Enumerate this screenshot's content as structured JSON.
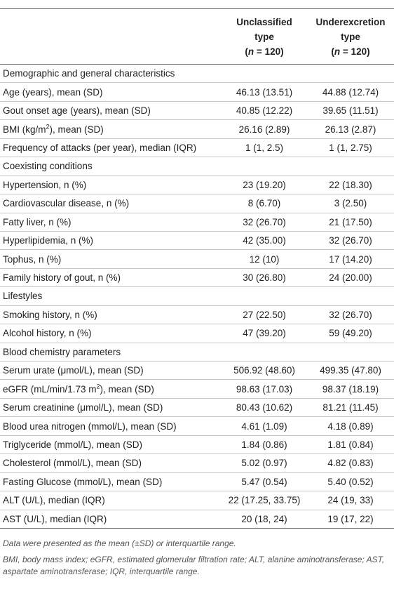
{
  "table": {
    "columns": [
      {
        "line1": "Unclassified",
        "line2": "type",
        "prefix": "(",
        "n_symbol": "n",
        "suffix": " = 120)"
      },
      {
        "line1": "Underexcretion",
        "line2": "type",
        "prefix": "(",
        "n_symbol": "n",
        "suffix": " = 120)"
      }
    ],
    "sections": [
      {
        "title": "Demographic and general characteristics",
        "rows": [
          {
            "label": "Age (years), mean (SD)",
            "values": [
              "46.13 (13.51)",
              "44.88 (12.74)"
            ]
          },
          {
            "label": "Gout onset age (years), mean (SD)",
            "values": [
              "40.85 (12.22)",
              "39.65 (11.51)"
            ]
          },
          {
            "label": "BMI (kg/m",
            "sup": "2",
            "label_after": "), mean (SD)",
            "values": [
              "26.16 (2.89)",
              "26.13 (2.87)"
            ]
          },
          {
            "label": "Frequency of attacks (per year), median (IQR)",
            "values": [
              "1 (1, 2.5)",
              "1 (1, 2.75)"
            ]
          }
        ]
      },
      {
        "title": "Coexisting conditions",
        "rows": [
          {
            "label": "Hypertension, n (%)",
            "values": [
              "23 (19.20)",
              "22 (18.30)"
            ]
          },
          {
            "label": "Cardiovascular disease, n (%)",
            "values": [
              "8 (6.70)",
              "3 (2.50)"
            ]
          },
          {
            "label": "Fatty liver, n (%)",
            "values": [
              "32 (26.70)",
              "21 (17.50)"
            ]
          },
          {
            "label": "Hyperlipidemia, n (%)",
            "values": [
              "42 (35.00)",
              "32 (26.70)"
            ]
          },
          {
            "label": "Tophus, n (%)",
            "values": [
              "12 (10)",
              "17 (14.20)"
            ]
          },
          {
            "label": "Family history of gout, n (%)",
            "values": [
              "30 (26.80)",
              "24 (20.00)"
            ]
          }
        ]
      },
      {
        "title": "Lifestyles",
        "rows": [
          {
            "label": "Smoking history, n (%)",
            "values": [
              "27 (22.50)",
              "32 (26.70)"
            ]
          },
          {
            "label": "Alcohol history, n (%)",
            "values": [
              "47 (39.20)",
              "59 (49.20)"
            ]
          }
        ]
      },
      {
        "title": "Blood chemistry parameters",
        "rows": [
          {
            "label": "Serum urate (μmol/L), mean (SD)",
            "values": [
              "506.92 (48.60)",
              "499.35 (47.80)"
            ]
          },
          {
            "label": "eGFR (mL/min/1.73 m",
            "sup": "2",
            "label_after": "), mean (SD)",
            "values": [
              "98.63 (17.03)",
              "98.37 (18.19)"
            ]
          },
          {
            "label": "Serum creatinine (μmol/L), mean (SD)",
            "values": [
              "80.43 (10.62)",
              "81.21 (11.45)"
            ]
          },
          {
            "label": "Blood urea nitrogen (mmol/L), mean (SD)",
            "values": [
              "4.61 (1.09)",
              "4.18 (0.89)"
            ]
          },
          {
            "label": "Triglyceride (mmol/L), mean (SD)",
            "values": [
              "1.84 (0.86)",
              "1.81 (0.84)"
            ]
          },
          {
            "label": "Cholesterol (mmol/L), mean (SD)",
            "values": [
              "5.02 (0.97)",
              "4.82 (0.83)"
            ]
          },
          {
            "label": "Fasting Glucose (mmol/L), mean (SD)",
            "values": [
              "5.47 (0.54)",
              "5.40 (0.52)"
            ]
          },
          {
            "label": "ALT (U/L), median (IQR)",
            "values": [
              "22 (17.25, 33.75)",
              "24 (19, 33)"
            ]
          },
          {
            "label": "AST (U/L), median (IQR)",
            "values": [
              "20 (18, 24)",
              "19 (17, 22)"
            ]
          }
        ]
      }
    ],
    "footnotes": [
      "Data were presented as the mean (±SD) or interquartile range.",
      "BMI, body mass index; eGFR, estimated glomerular filtration rate; ALT, alanine aminotransferase; AST, aspartate aminotransferase; IQR, interquartile range."
    ]
  }
}
